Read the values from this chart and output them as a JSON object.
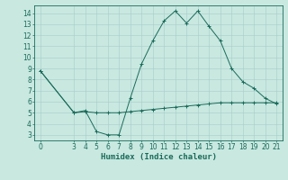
{
  "xlabel": "Humidex (Indice chaleur)",
  "line1_x": [
    0,
    3,
    4,
    5,
    6,
    7,
    8,
    9,
    10,
    11,
    12,
    13,
    14,
    15,
    16,
    17,
    18,
    19,
    20,
    21
  ],
  "line1_y": [
    8.8,
    5.0,
    5.2,
    3.3,
    3.0,
    3.0,
    6.3,
    9.4,
    11.5,
    13.3,
    14.2,
    13.1,
    14.2,
    12.8,
    11.5,
    9.0,
    7.8,
    7.2,
    6.3,
    5.8
  ],
  "line2_x": [
    0,
    3,
    4,
    5,
    6,
    7,
    8,
    9,
    10,
    11,
    12,
    13,
    14,
    15,
    16,
    17,
    18,
    19,
    20,
    21
  ],
  "line2_y": [
    8.8,
    5.0,
    5.1,
    5.0,
    5.0,
    5.0,
    5.1,
    5.2,
    5.3,
    5.4,
    5.5,
    5.6,
    5.7,
    5.8,
    5.9,
    5.9,
    5.9,
    5.9,
    5.9,
    5.9
  ],
  "line_color": "#1a6b5a",
  "bg_color": "#c8e8e0",
  "grid_color": "#a8ccca",
  "xlim": [
    -0.5,
    21.5
  ],
  "ylim": [
    2.5,
    14.7
  ],
  "xticks": [
    0,
    3,
    4,
    5,
    6,
    7,
    8,
    9,
    10,
    11,
    12,
    13,
    14,
    15,
    16,
    17,
    18,
    19,
    20,
    21
  ],
  "yticks": [
    3,
    4,
    5,
    6,
    7,
    8,
    9,
    10,
    11,
    12,
    13,
    14
  ],
  "tick_fontsize": 5.5,
  "xlabel_fontsize": 6.5,
  "marker": "+"
}
